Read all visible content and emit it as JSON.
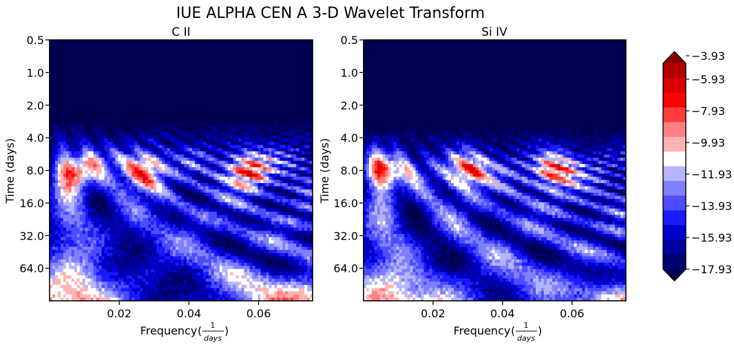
{
  "figure": {
    "suptitle": "IUE ALPHA CEN A 3-D Wavelet Transform"
  },
  "colorbar": {
    "levels": [
      -18.93,
      -17.93,
      -16.93,
      -15.93,
      -14.93,
      -13.93,
      -12.93,
      -11.93,
      -10.93,
      -9.93,
      -8.93,
      -7.93,
      -6.93,
      -5.93,
      -4.93,
      -3.93
    ],
    "tick_labels": [
      "−3.93",
      "−5.93",
      "−7.93",
      "−9.93",
      "−11.93",
      "−13.93",
      "−15.93",
      "−17.93"
    ],
    "tick_values": [
      -3.93,
      -5.93,
      -7.93,
      -9.93,
      -11.93,
      -13.93,
      -15.93,
      -17.93
    ],
    "colors": [
      "#000050",
      "#00006e",
      "#0000a0",
      "#0000cc",
      "#1a1aff",
      "#4d4dff",
      "#8080ff",
      "#b4b4ff",
      "#ffffff",
      "#ffb4b4",
      "#ff8080",
      "#ff3c3c",
      "#ff0000",
      "#d80000",
      "#b40000",
      "#8c0000"
    ],
    "extend": "both"
  },
  "chart_data": [
    {
      "type": "heatmap",
      "title": "C II",
      "xlabel": "Frequency",
      "xlabel_frac_num": "1",
      "xlabel_frac_den": "days",
      "ylabel": "Time (days)",
      "xlim": [
        0.0,
        0.0755
      ],
      "xticks": [
        0.02,
        0.04,
        0.06
      ],
      "xtick_labels": [
        "0.02",
        "0.04",
        "0.06"
      ],
      "ylim": [
        0.5,
        128
      ],
      "yscale": "log2",
      "yticks": [
        0.5,
        1,
        2,
        4,
        8,
        16,
        32,
        64
      ],
      "ytick_labels": [
        "0.5",
        "1.0",
        "2.0",
        "4.0",
        "8.0",
        "16.0",
        "32.0",
        "64.0"
      ],
      "x_hot_bands": [
        0.008,
        0.027,
        0.057
      ],
      "noise_onset_period_days": 3.5
    },
    {
      "type": "heatmap",
      "title": "Si IV",
      "xlabel": "Frequency",
      "xlabel_frac_num": "1",
      "xlabel_frac_den": "days",
      "ylabel": "Time (days)",
      "xlim": [
        0.0,
        0.0755
      ],
      "xticks": [
        0.02,
        0.04,
        0.06
      ],
      "xtick_labels": [
        "0.02",
        "0.04",
        "0.06"
      ],
      "ylim": [
        0.5,
        128
      ],
      "yscale": "log2",
      "yticks": [
        0.5,
        1,
        2,
        4,
        8,
        16,
        32,
        64
      ],
      "ytick_labels": [
        "0.5",
        "1.0",
        "2.0",
        "4.0",
        "8.0",
        "16.0",
        "32.0",
        "64.0"
      ],
      "x_hot_bands": [
        0.006,
        0.03,
        0.055
      ],
      "noise_onset_period_days": 4.0
    }
  ]
}
